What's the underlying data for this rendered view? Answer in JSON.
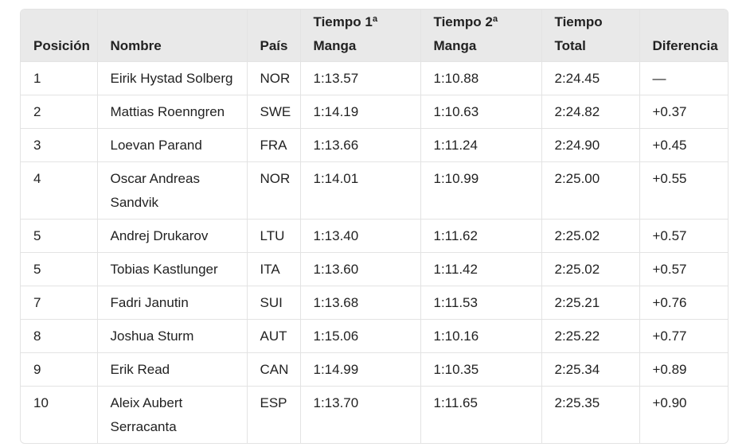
{
  "table": {
    "header": [
      "Posición",
      "Nombre",
      "País",
      "Tiempo 1ª Manga",
      "Tiempo 2ª Manga",
      "Tiempo Total",
      "Diferencia"
    ],
    "rows": [
      [
        "1",
        "Eirik Hystad Solberg",
        "NOR",
        "1:13.57",
        "1:10.88",
        "2:24.45",
        "—"
      ],
      [
        "2",
        "Mattias Roenngren",
        "SWE",
        "1:14.19",
        "1:10.63",
        "2:24.82",
        "+0.37"
      ],
      [
        "3",
        "Loevan Parand",
        "FRA",
        "1:13.66",
        "1:11.24",
        "2:24.90",
        "+0.45"
      ],
      [
        "4",
        "Oscar Andreas Sandvik",
        "NOR",
        "1:14.01",
        "1:10.99",
        "2:25.00",
        "+0.55"
      ],
      [
        "5",
        "Andrej Drukarov",
        "LTU",
        "1:13.40",
        "1:11.62",
        "2:25.02",
        "+0.57"
      ],
      [
        "5",
        "Tobias Kastlunger",
        "ITA",
        "1:13.60",
        "1:11.42",
        "2:25.02",
        "+0.57"
      ],
      [
        "7",
        "Fadri Janutin",
        "SUI",
        "1:13.68",
        "1:11.53",
        "2:25.21",
        "+0.76"
      ],
      [
        "8",
        "Joshua Sturm",
        "AUT",
        "1:15.06",
        "1:10.16",
        "2:25.22",
        "+0.77"
      ],
      [
        "9",
        "Erik Read",
        "CAN",
        "1:14.99",
        "1:10.35",
        "2:25.34",
        "+0.89"
      ],
      [
        "10",
        "Aleix Aubert Serracanta",
        "ESP",
        "1:13.70",
        "1:11.65",
        "2:25.35",
        "+0.90"
      ]
    ]
  }
}
